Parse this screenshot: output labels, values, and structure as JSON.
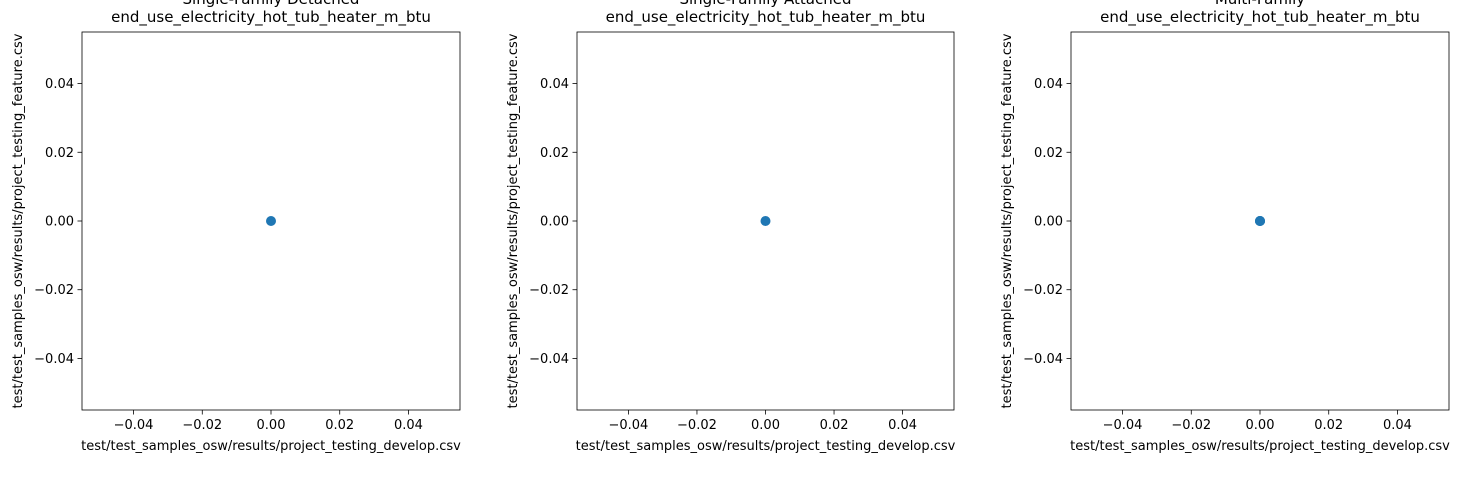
{
  "chart_data": [
    {
      "type": "scatter",
      "title": "Single-Family Detached\nend_use_electricity_hot_tub_heater_m_btu",
      "xlabel": "test/test_samples_osw/results/project_testing_develop.csv",
      "ylabel": "test/test_samples_osw/results/project_testing_feature.csv",
      "xlim": [
        -0.055,
        0.055
      ],
      "ylim": [
        -0.055,
        0.055
      ],
      "xticks": [
        -0.04,
        -0.02,
        0.0,
        0.02,
        0.04
      ],
      "yticks": [
        -0.04,
        -0.02,
        0.0,
        0.02,
        0.04
      ],
      "xtick_labels": [
        "−0.04",
        "−0.02",
        "0.00",
        "0.02",
        "0.04"
      ],
      "ytick_labels": [
        "−0.04",
        "−0.02",
        "0.00",
        "0.02",
        "0.04"
      ],
      "grid": false,
      "point_color": "#1f77b4",
      "points": [
        {
          "x": 0,
          "y": 0
        }
      ]
    },
    {
      "type": "scatter",
      "title": "Single-Family Attached\nend_use_electricity_hot_tub_heater_m_btu",
      "xlabel": "test/test_samples_osw/results/project_testing_develop.csv",
      "ylabel": "test/test_samples_osw/results/project_testing_feature.csv",
      "xlim": [
        -0.055,
        0.055
      ],
      "ylim": [
        -0.055,
        0.055
      ],
      "xticks": [
        -0.04,
        -0.02,
        0.0,
        0.02,
        0.04
      ],
      "yticks": [
        -0.04,
        -0.02,
        0.0,
        0.02,
        0.04
      ],
      "xtick_labels": [
        "−0.04",
        "−0.02",
        "0.00",
        "0.02",
        "0.04"
      ],
      "ytick_labels": [
        "−0.04",
        "−0.02",
        "0.00",
        "0.02",
        "0.04"
      ],
      "grid": false,
      "point_color": "#1f77b4",
      "points": [
        {
          "x": 0,
          "y": 0
        }
      ]
    },
    {
      "type": "scatter",
      "title": "Multi-Family\nend_use_electricity_hot_tub_heater_m_btu",
      "xlabel": "test/test_samples_osw/results/project_testing_develop.csv",
      "ylabel": "test/test_samples_osw/results/project_testing_feature.csv",
      "xlim": [
        -0.055,
        0.055
      ],
      "ylim": [
        -0.055,
        0.055
      ],
      "xticks": [
        -0.04,
        -0.02,
        0.0,
        0.02,
        0.04
      ],
      "yticks": [
        -0.04,
        -0.02,
        0.0,
        0.02,
        0.04
      ],
      "xtick_labels": [
        "−0.04",
        "−0.02",
        "0.00",
        "0.02",
        "0.04"
      ],
      "ytick_labels": [
        "−0.04",
        "−0.02",
        "0.00",
        "0.02",
        "0.04"
      ],
      "grid": false,
      "point_color": "#1f77b4",
      "points": [
        {
          "x": 0,
          "y": 0
        },
        {
          "x": 0,
          "y": 0
        },
        {
          "x": 0,
          "y": 0
        }
      ]
    }
  ]
}
